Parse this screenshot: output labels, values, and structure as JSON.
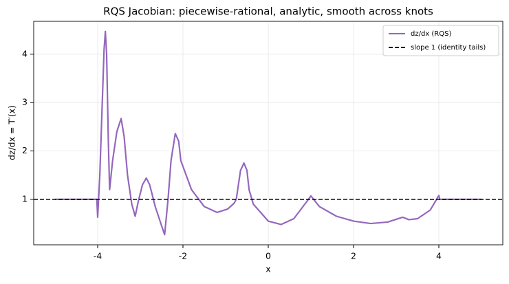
{
  "chart_data": {
    "type": "line",
    "title": "RQS Jacobian: piecewise-rational, analytic, smooth across knots",
    "x_label": "x",
    "y_label": "dz/dx = T′(x)",
    "x": [
      -5,
      -4.02,
      -4.0,
      -3.95,
      -3.9,
      -3.85,
      -3.82,
      -3.79,
      -3.75,
      -3.72,
      -3.65,
      -3.55,
      -3.45,
      -3.38,
      -3.3,
      -3.2,
      -3.12,
      -3.05,
      -2.95,
      -2.86,
      -2.78,
      -2.65,
      -2.5,
      -2.43,
      -2.35,
      -2.28,
      -2.18,
      -2.1,
      -2.05,
      -1.8,
      -1.5,
      -1.2,
      -0.95,
      -0.8,
      -0.75,
      -0.65,
      -0.57,
      -0.5,
      -0.45,
      -0.35,
      0,
      0.3,
      0.6,
      0.9,
      1.0,
      1.2,
      1.6,
      2.0,
      2.4,
      2.8,
      3.15,
      3.3,
      3.5,
      3.8,
      4.0,
      4.02,
      5
    ],
    "series": [
      {
        "name": "dz/dx (RQS)",
        "color": "#9467bd",
        "values": [
          1,
          1,
          0.63,
          1.5,
          2.8,
          4.1,
          4.47,
          4.0,
          2.2,
          1.2,
          1.8,
          2.4,
          2.67,
          2.3,
          1.5,
          0.9,
          0.65,
          0.95,
          1.3,
          1.44,
          1.3,
          0.85,
          0.45,
          0.27,
          1.0,
          1.8,
          2.36,
          2.2,
          1.8,
          1.2,
          0.85,
          0.73,
          0.8,
          0.92,
          1.0,
          1.6,
          1.75,
          1.6,
          1.2,
          0.9,
          0.55,
          0.48,
          0.6,
          0.95,
          1.07,
          0.85,
          0.65,
          0.55,
          0.5,
          0.53,
          0.63,
          0.58,
          0.6,
          0.78,
          1.08,
          1,
          1
        ]
      },
      {
        "name": "slope 1 (identity tails)",
        "color": "#000000",
        "style": "dashed",
        "y": 1
      }
    ],
    "xlim": [
      -5.5,
      5.5
    ],
    "ylim": [
      0.06,
      4.68
    ],
    "xticks": [
      -4,
      -2,
      0,
      2,
      4
    ],
    "yticks": [
      1,
      2,
      3,
      4
    ],
    "grid": true,
    "legend": "upper right"
  }
}
